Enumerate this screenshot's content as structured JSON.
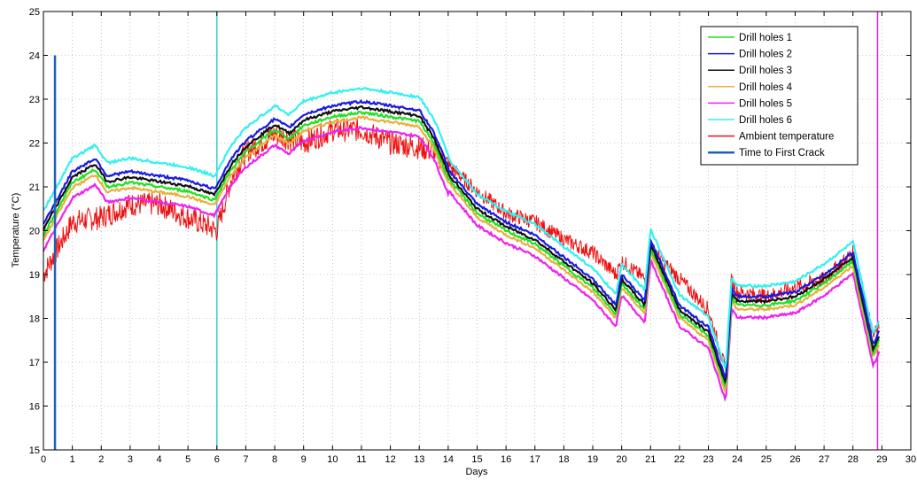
{
  "chart_data": {
    "type": "line",
    "title": "",
    "xlabel": "Days",
    "ylabel": "Temperature (°C)",
    "xlim": [
      0,
      30
    ],
    "ylim": [
      15,
      25
    ],
    "x_ticks": [
      0,
      1,
      2,
      3,
      4,
      5,
      6,
      7,
      8,
      9,
      10,
      11,
      12,
      13,
      14,
      15,
      16,
      17,
      18,
      19,
      20,
      21,
      22,
      23,
      24,
      25,
      26,
      27,
      28,
      29,
      30
    ],
    "y_ticks": [
      15,
      16,
      17,
      18,
      19,
      20,
      21,
      22,
      23,
      24,
      25
    ],
    "grid": true,
    "legend_position": "top-right",
    "baseline": {
      "x": [
        0,
        1,
        1.8,
        2.2,
        3,
        4,
        5,
        5.9,
        6,
        6.5,
        7,
        8,
        8.5,
        9,
        10,
        11,
        12,
        13,
        13.5,
        14,
        15,
        16,
        17,
        18,
        19,
        19.8,
        20,
        20.8,
        21,
        22,
        23,
        23.6,
        23.8,
        24,
        25,
        26,
        27,
        28,
        28.7,
        28.9
      ],
      "y": [
        19.9,
        21.1,
        21.4,
        21.0,
        21.1,
        21.0,
        20.9,
        20.7,
        20.8,
        21.4,
        21.8,
        22.3,
        22.1,
        22.4,
        22.6,
        22.7,
        22.6,
        22.5,
        22.0,
        21.2,
        20.4,
        20.0,
        19.7,
        19.2,
        18.7,
        18.1,
        18.8,
        18.2,
        19.6,
        18.1,
        17.6,
        16.4,
        18.5,
        18.3,
        18.3,
        18.4,
        18.8,
        19.3,
        17.2,
        17.5
      ]
    },
    "series": [
      {
        "name": "Drill holes 1",
        "color": "#20e020",
        "offset": 0.0
      },
      {
        "name": "Drill holes 2",
        "color": "#1a1ae0",
        "offset": 0.25
      },
      {
        "name": "Drill holes 3",
        "color": "#111111",
        "offset": 0.12
      },
      {
        "name": "Drill holes 4",
        "color": "#e8b040",
        "offset": -0.12
      },
      {
        "name": "Drill holes 5",
        "color": "#ee22ee",
        "offset": -0.35
      },
      {
        "name": "Drill holes 6",
        "color": "#33f0f0",
        "offset": 0.55
      },
      {
        "name": "Ambient temperature",
        "color": "#ee1111",
        "x": [
          0,
          0.5,
          1,
          2,
          3,
          4,
          5,
          6,
          6.5,
          7,
          7.5,
          8,
          9,
          10,
          11,
          12,
          13,
          13.5,
          14,
          15,
          16,
          17,
          18,
          19,
          19.8,
          20,
          20.8,
          21,
          22,
          23,
          23.6,
          23.8,
          24,
          25,
          26,
          27,
          28,
          28.7,
          28.9
        ],
        "y": [
          19.0,
          19.6,
          20.2,
          20.3,
          20.6,
          20.6,
          20.3,
          20.0,
          21.2,
          21.8,
          22.0,
          22.2,
          22.0,
          22.3,
          22.3,
          22.0,
          21.9,
          21.8,
          21.5,
          20.9,
          20.4,
          20.2,
          19.8,
          19.5,
          19.0,
          19.3,
          18.9,
          19.6,
          18.9,
          18.2,
          16.8,
          18.9,
          18.6,
          18.5,
          18.7,
          18.9,
          19.5,
          17.6,
          17.8
        ]
      },
      {
        "name": "Time to First Crack",
        "color": "#1f62b4",
        "x": [
          0.4,
          0.4
        ],
        "y": [
          15,
          24
        ]
      }
    ],
    "vertical_lines": [
      {
        "x": 6.0,
        "color": "#33d0d0"
      },
      {
        "x": 28.85,
        "color": "#dd22dd"
      }
    ]
  }
}
